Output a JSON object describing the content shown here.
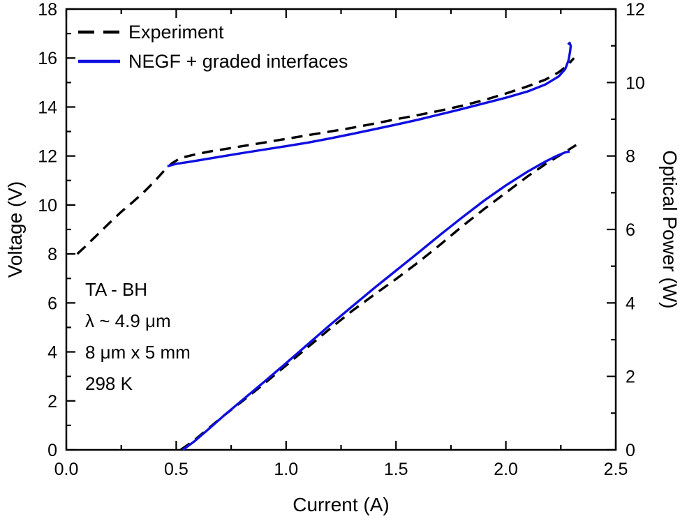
{
  "chart_data": {
    "type": "line",
    "title": "",
    "xlabel": "Current (A)",
    "ylabel_left": "Voltage (V)",
    "ylabel_right": "Optical Power (W)",
    "xlim": [
      0.0,
      2.5
    ],
    "ylim_left": [
      0,
      18
    ],
    "ylim_right": [
      0,
      12
    ],
    "grid": false,
    "legend_position": "top-left",
    "x_ticks": [
      0.0,
      0.5,
      1.0,
      1.5,
      2.0,
      2.5
    ],
    "x_tick_labels": [
      "0.0",
      "0.5",
      "1.0",
      "1.5",
      "2.0",
      "2.5"
    ],
    "y_ticks_left": [
      0,
      2,
      4,
      6,
      8,
      10,
      12,
      14,
      16,
      18
    ],
    "y_tick_labels_left": [
      "0",
      "2",
      "4",
      "6",
      "8",
      "10",
      "12",
      "14",
      "16",
      "18"
    ],
    "y_ticks_right": [
      0,
      2,
      4,
      6,
      8,
      10,
      12
    ],
    "y_tick_labels_right": [
      "0",
      "2",
      "4",
      "6",
      "8",
      "10",
      "12"
    ],
    "colors": {
      "experiment": "#000000",
      "negf": "#0f0fe0"
    },
    "legend": [
      {
        "label": "Experiment",
        "color": "#000000",
        "dashed": true
      },
      {
        "label": "NEGF + graded interfaces",
        "color": "#0f0fe0",
        "dashed": false
      }
    ],
    "annotation": {
      "lines": [
        "TA - BH",
        "λ ~ 4.9 μm",
        "8 μm x 5 mm",
        "298 K"
      ]
    },
    "series": [
      {
        "name": "experiment-voltage",
        "legend": "Experiment",
        "axis": "left",
        "color": "#000000",
        "dashed": true,
        "points": [
          [
            0.05,
            8.0
          ],
          [
            0.08,
            8.25
          ],
          [
            0.12,
            8.6
          ],
          [
            0.16,
            8.95
          ],
          [
            0.2,
            9.3
          ],
          [
            0.25,
            9.72
          ],
          [
            0.3,
            10.1
          ],
          [
            0.35,
            10.5
          ],
          [
            0.4,
            10.95
          ],
          [
            0.44,
            11.35
          ],
          [
            0.48,
            11.7
          ],
          [
            0.52,
            11.92
          ],
          [
            0.58,
            12.05
          ],
          [
            0.65,
            12.18
          ],
          [
            0.72,
            12.28
          ],
          [
            0.8,
            12.4
          ],
          [
            0.9,
            12.55
          ],
          [
            1.0,
            12.7
          ],
          [
            1.1,
            12.85
          ],
          [
            1.2,
            13.0
          ],
          [
            1.3,
            13.15
          ],
          [
            1.4,
            13.32
          ],
          [
            1.5,
            13.5
          ],
          [
            1.6,
            13.67
          ],
          [
            1.7,
            13.85
          ],
          [
            1.8,
            14.05
          ],
          [
            1.9,
            14.28
          ],
          [
            2.0,
            14.55
          ],
          [
            2.1,
            14.85
          ],
          [
            2.18,
            15.12
          ],
          [
            2.24,
            15.42
          ],
          [
            2.28,
            15.7
          ],
          [
            2.31,
            16.0
          ]
        ]
      },
      {
        "name": "negf-voltage",
        "legend": "NEGF + graded interfaces",
        "axis": "left",
        "color": "#0f0fe0",
        "dashed": false,
        "points": [
          [
            0.46,
            11.58
          ],
          [
            0.5,
            11.68
          ],
          [
            0.56,
            11.76
          ],
          [
            0.62,
            11.85
          ],
          [
            0.7,
            11.97
          ],
          [
            0.8,
            12.12
          ],
          [
            0.9,
            12.26
          ],
          [
            1.0,
            12.4
          ],
          [
            1.1,
            12.55
          ],
          [
            1.2,
            12.72
          ],
          [
            1.3,
            12.9
          ],
          [
            1.4,
            13.09
          ],
          [
            1.5,
            13.28
          ],
          [
            1.6,
            13.48
          ],
          [
            1.7,
            13.7
          ],
          [
            1.8,
            13.92
          ],
          [
            1.9,
            14.15
          ],
          [
            2.0,
            14.38
          ],
          [
            2.1,
            14.64
          ],
          [
            2.18,
            14.92
          ],
          [
            2.24,
            15.25
          ],
          [
            2.27,
            15.55
          ],
          [
            2.285,
            15.9
          ],
          [
            2.292,
            16.25
          ],
          [
            2.295,
            16.5
          ],
          [
            2.29,
            16.62
          ],
          [
            2.283,
            16.55
          ]
        ]
      },
      {
        "name": "experiment-power",
        "legend": "Experiment",
        "axis": "right",
        "color": "#000000",
        "dashed": true,
        "points": [
          [
            0.52,
            0.0
          ],
          [
            0.58,
            0.25
          ],
          [
            0.65,
            0.6
          ],
          [
            0.72,
            0.95
          ],
          [
            0.8,
            1.32
          ],
          [
            0.9,
            1.8
          ],
          [
            1.0,
            2.3
          ],
          [
            1.1,
            2.8
          ],
          [
            1.2,
            3.3
          ],
          [
            1.3,
            3.78
          ],
          [
            1.4,
            4.22
          ],
          [
            1.5,
            4.65
          ],
          [
            1.6,
            5.1
          ],
          [
            1.7,
            5.58
          ],
          [
            1.8,
            6.08
          ],
          [
            1.9,
            6.55
          ],
          [
            2.0,
            7.0
          ],
          [
            2.1,
            7.45
          ],
          [
            2.18,
            7.78
          ],
          [
            2.24,
            8.0
          ],
          [
            2.28,
            8.15
          ],
          [
            2.32,
            8.3
          ]
        ]
      },
      {
        "name": "negf-power",
        "legend": "NEGF + graded interfaces",
        "axis": "right",
        "color": "#0f0fe0",
        "dashed": false,
        "points": [
          [
            0.53,
            0.0
          ],
          [
            0.58,
            0.22
          ],
          [
            0.65,
            0.58
          ],
          [
            0.72,
            0.95
          ],
          [
            0.8,
            1.35
          ],
          [
            0.9,
            1.85
          ],
          [
            1.0,
            2.36
          ],
          [
            1.1,
            2.88
          ],
          [
            1.2,
            3.4
          ],
          [
            1.3,
            3.9
          ],
          [
            1.4,
            4.4
          ],
          [
            1.5,
            4.88
          ],
          [
            1.6,
            5.36
          ],
          [
            1.7,
            5.85
          ],
          [
            1.8,
            6.32
          ],
          [
            1.9,
            6.78
          ],
          [
            2.0,
            7.2
          ],
          [
            2.1,
            7.58
          ],
          [
            2.18,
            7.85
          ],
          [
            2.23,
            8.0
          ],
          [
            2.27,
            8.1
          ],
          [
            2.29,
            8.12
          ]
        ]
      }
    ]
  }
}
